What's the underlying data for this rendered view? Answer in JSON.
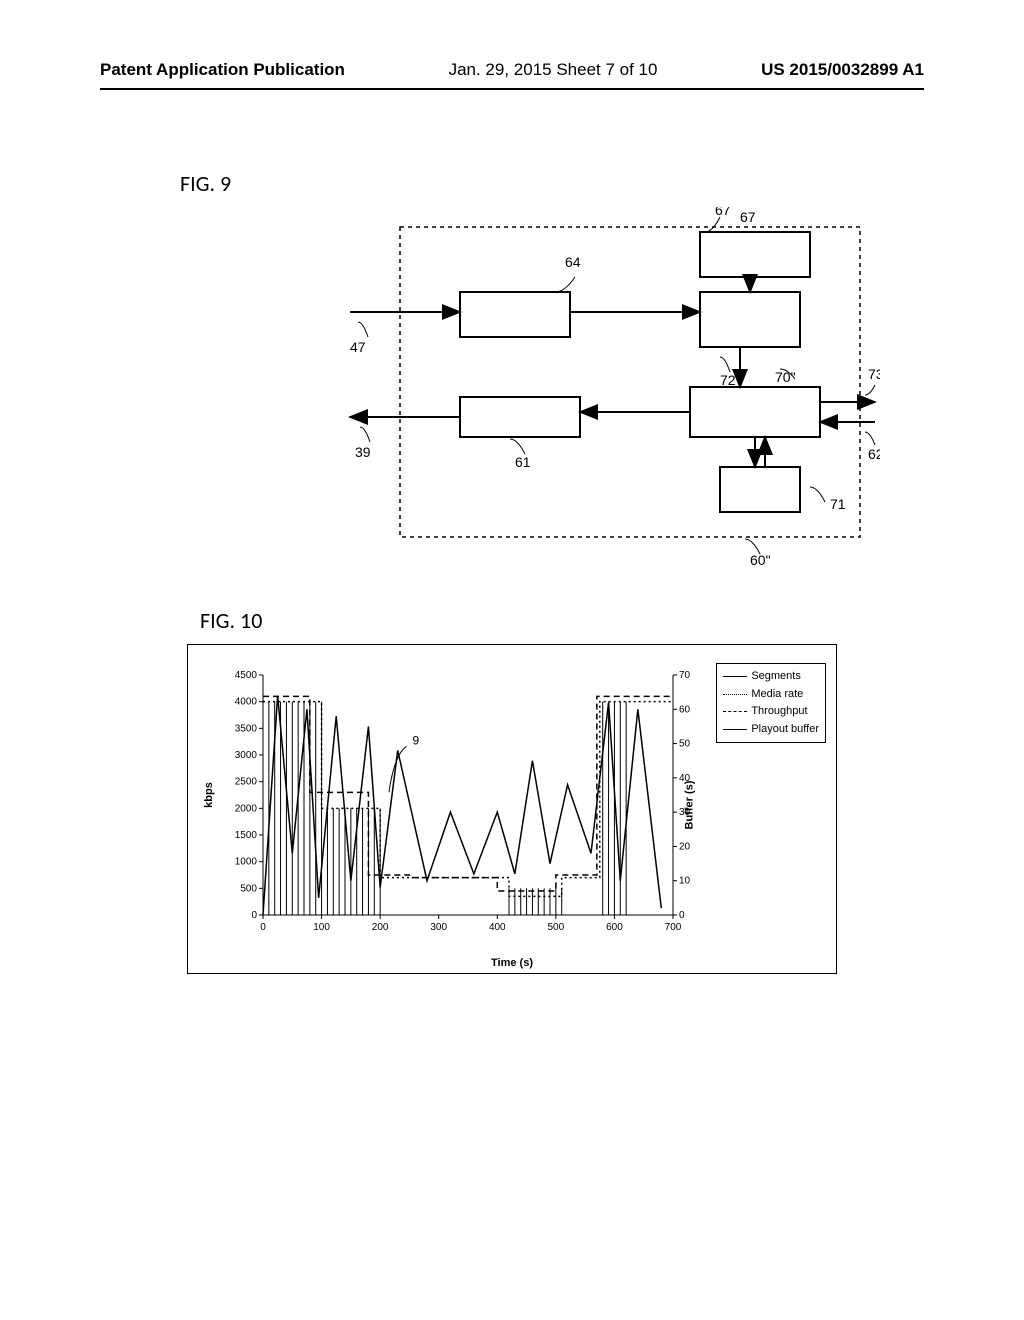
{
  "header": {
    "left": "Patent Application Publication",
    "mid": "Jan. 29, 2015  Sheet 7 of 10",
    "right": "US 2015/0032899 A1"
  },
  "fig9": {
    "title": "FIG. 9",
    "labels": {
      "n47": "47",
      "n39": "39",
      "n64": "64",
      "n61": "61",
      "n67": "67",
      "n72": "72",
      "n70": "70\"",
      "n71": "71",
      "n73": "73",
      "n62": "62",
      "n60": "60\""
    },
    "box_fill": "#ffffff",
    "stroke": "#000000",
    "dash": "4,4"
  },
  "fig10": {
    "title": "FIG. 10",
    "xlabel": "Time (s)",
    "ylabel": "kbps",
    "y2label": "Buffer (s)",
    "legend": {
      "segments": "Segments",
      "media": "Media rate",
      "throughput": "Throughput",
      "playout": "Playout buffer"
    },
    "annotation": "9",
    "xlim": [
      0,
      700
    ],
    "xtick_step": 100,
    "ylim": [
      0,
      4500
    ],
    "ytick_step": 500,
    "y2lim": [
      0,
      70
    ],
    "y2tick_step": 10,
    "styles": {
      "segments": {
        "color": "#000000",
        "dash": "",
        "width": 1
      },
      "media": {
        "color": "#000000",
        "dash": "2,3",
        "width": 1.5
      },
      "throughput": {
        "color": "#000000",
        "dash": "6,4",
        "width": 1.5
      },
      "playout": {
        "color": "#000000",
        "dash": "",
        "width": 1.5
      }
    },
    "segments_x": [
      10,
      20,
      30,
      40,
      50,
      60,
      70,
      80,
      90,
      100,
      110,
      120,
      130,
      140,
      150,
      160,
      170,
      180,
      190,
      200,
      420,
      430,
      440,
      450,
      460,
      470,
      480,
      490,
      500,
      510,
      580,
      590,
      600,
      610,
      620
    ],
    "segments_y": [
      4000,
      4000,
      4000,
      4000,
      4000,
      4000,
      4000,
      4000,
      4000,
      4000,
      2000,
      2000,
      2000,
      2000,
      2000,
      2000,
      2000,
      2000,
      2000,
      2000,
      500,
      500,
      500,
      500,
      500,
      500,
      500,
      500,
      500,
      500,
      4000,
      4000,
      4000,
      4000,
      4000
    ],
    "media_rate": [
      [
        0,
        4000
      ],
      [
        100,
        4000
      ],
      [
        100,
        2000
      ],
      [
        200,
        2000
      ],
      [
        200,
        700
      ],
      [
        420,
        700
      ],
      [
        420,
        350
      ],
      [
        510,
        350
      ],
      [
        510,
        700
      ],
      [
        575,
        700
      ],
      [
        575,
        4000
      ],
      [
        700,
        4000
      ]
    ],
    "throughput": [
      [
        0,
        4100
      ],
      [
        80,
        4100
      ],
      [
        80,
        2300
      ],
      [
        180,
        2300
      ],
      [
        180,
        750
      ],
      [
        250,
        750
      ],
      [
        250,
        700
      ],
      [
        400,
        700
      ],
      [
        400,
        450
      ],
      [
        500,
        450
      ],
      [
        500,
        750
      ],
      [
        570,
        750
      ],
      [
        570,
        4100
      ],
      [
        700,
        4100
      ]
    ],
    "playout": [
      [
        0,
        0
      ],
      [
        25,
        64
      ],
      [
        50,
        18
      ],
      [
        75,
        60
      ],
      [
        95,
        5
      ],
      [
        125,
        58
      ],
      [
        150,
        10
      ],
      [
        180,
        55
      ],
      [
        200,
        8
      ],
      [
        230,
        48
      ],
      [
        280,
        10
      ],
      [
        320,
        30
      ],
      [
        360,
        12
      ],
      [
        400,
        30
      ],
      [
        430,
        12
      ],
      [
        460,
        45
      ],
      [
        490,
        15
      ],
      [
        520,
        38
      ],
      [
        560,
        18
      ],
      [
        590,
        62
      ],
      [
        610,
        10
      ],
      [
        640,
        60
      ],
      [
        680,
        2
      ]
    ]
  }
}
